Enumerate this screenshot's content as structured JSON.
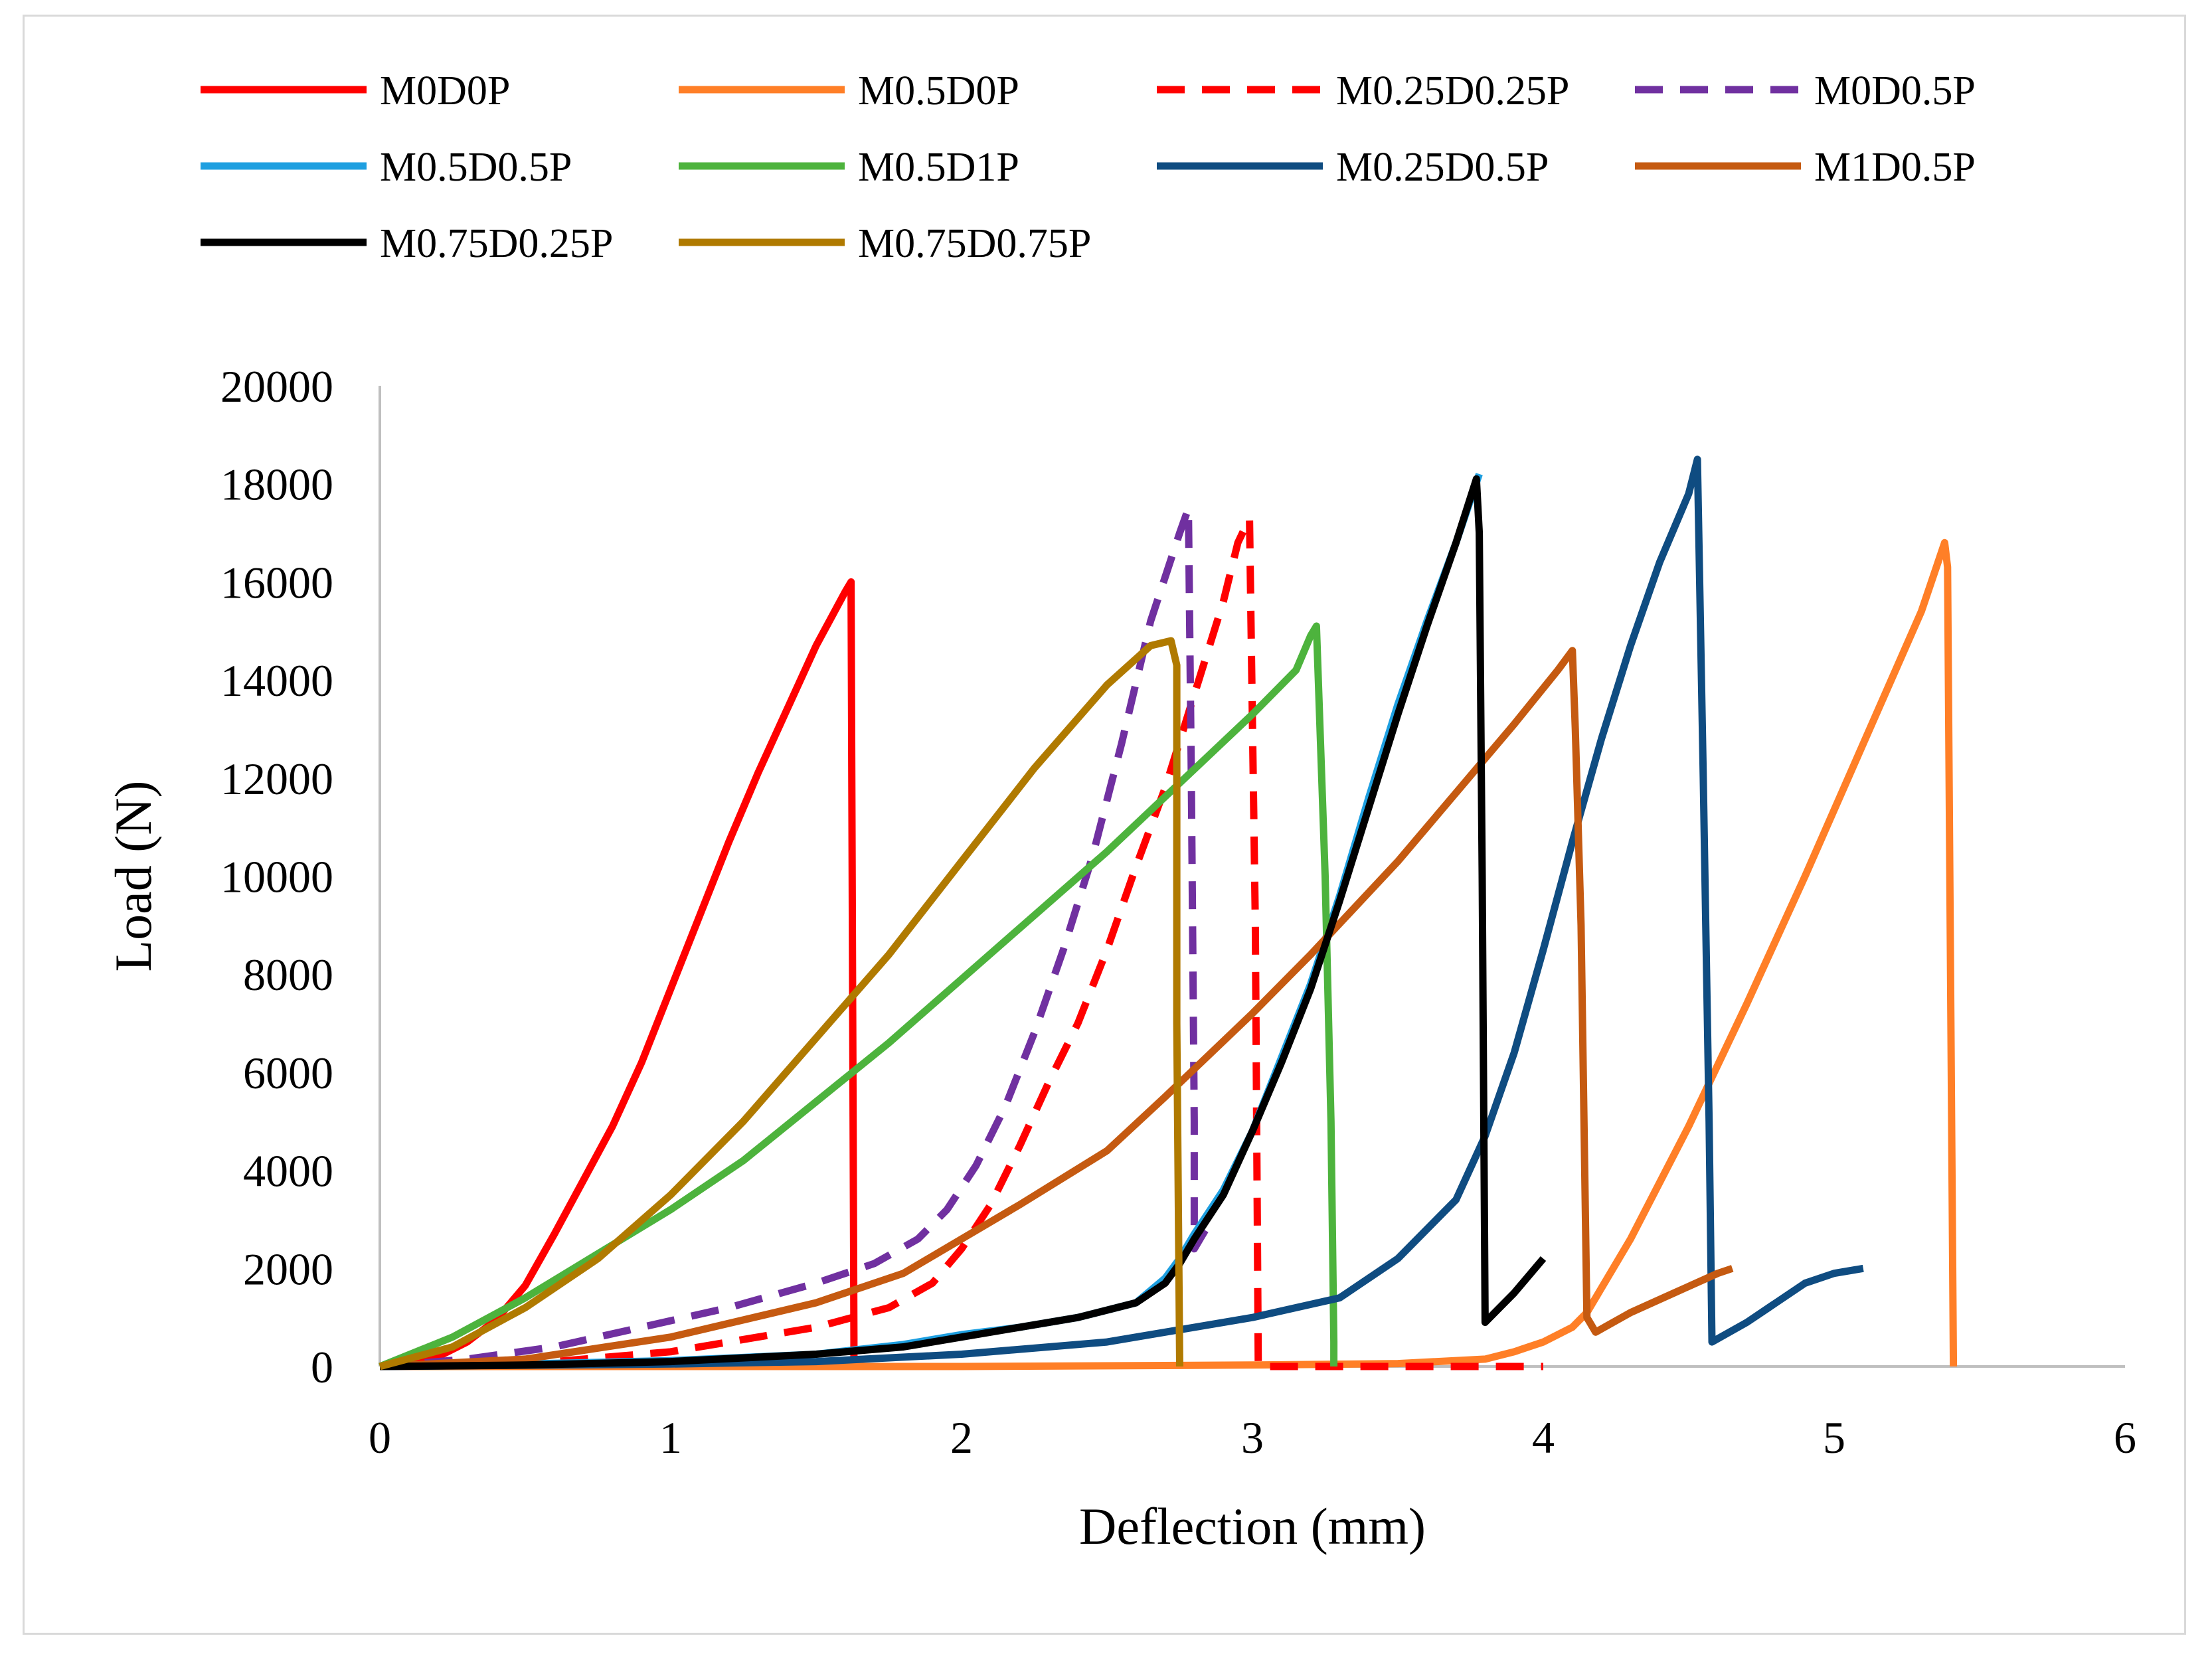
{
  "chart_data": {
    "type": "line",
    "title": "",
    "xlabel": "Deflection (mm)",
    "ylabel": "Load (N)",
    "xlim": [
      0,
      6
    ],
    "ylim": [
      0,
      20000
    ],
    "xticks": [
      0,
      1,
      2,
      3,
      4,
      5,
      6
    ],
    "yticks": [
      0,
      2000,
      4000,
      6000,
      8000,
      10000,
      12000,
      14000,
      16000,
      18000,
      20000
    ],
    "xtick_labels": [
      "0",
      "1",
      "2",
      "3",
      "4",
      "5",
      "6"
    ],
    "ytick_labels": [
      "0",
      "2000",
      "4000",
      "6000",
      "8000",
      "10000",
      "12000",
      "14000",
      "16000",
      "18000",
      "20000"
    ],
    "grid": false,
    "legend_position": "top",
    "series": [
      {
        "name": "M0D0P",
        "color": "#ff0000",
        "dash": "solid",
        "x": [
          0,
          0.1,
          0.2,
          0.3,
          0.4,
          0.5,
          0.6,
          0.7,
          0.8,
          0.9,
          1.0,
          1.1,
          1.2,
          1.3,
          1.4,
          1.5,
          1.6,
          1.62,
          1.63,
          1.63
        ],
        "y": [
          0,
          50,
          200,
          500,
          950,
          1650,
          2700,
          3800,
          4900,
          6200,
          7700,
          9200,
          10700,
          12100,
          13400,
          14700,
          15800,
          16000,
          600,
          0
        ]
      },
      {
        "name": "M0.5D0P",
        "color": "#ff7f27",
        "dash": "solid",
        "x": [
          0,
          1,
          2,
          3,
          3.5,
          3.8,
          3.9,
          4.0,
          4.1,
          4.15,
          4.3,
          4.5,
          4.7,
          4.9,
          5.1,
          5.3,
          5.38,
          5.39,
          5.41
        ],
        "y": [
          0,
          0,
          0,
          30,
          60,
          150,
          300,
          500,
          800,
          1100,
          2600,
          4900,
          7400,
          10000,
          12700,
          15400,
          16800,
          16300,
          0
        ]
      },
      {
        "name": "M0.25D0.25P",
        "color": "#ff0000",
        "dash": "dashed",
        "x": [
          0,
          0.5,
          1.0,
          1.5,
          1.75,
          1.9,
          2.0,
          2.1,
          2.2,
          2.3,
          2.4,
          2.5,
          2.6,
          2.7,
          2.8,
          2.9,
          2.95,
          2.99,
          3.01,
          3.02,
          3.5,
          4.0
        ],
        "y": [
          0,
          50,
          300,
          800,
          1200,
          1700,
          2400,
          3300,
          4500,
          5800,
          7000,
          8500,
          10200,
          11800,
          13700,
          15600,
          16800,
          17300,
          9000,
          0,
          0,
          0
        ]
      },
      {
        "name": "M0D0.5P",
        "color": "#7030a0",
        "dash": "dashed",
        "x": [
          0,
          0.3,
          0.6,
          0.9,
          1.2,
          1.5,
          1.7,
          1.85,
          1.95,
          2.05,
          2.15,
          2.25,
          2.35,
          2.45,
          2.55,
          2.65,
          2.75,
          2.78,
          2.79,
          2.8,
          2.8,
          2.85
        ],
        "y": [
          0,
          150,
          400,
          800,
          1200,
          1700,
          2100,
          2600,
          3200,
          4100,
          5300,
          6800,
          8500,
          10400,
          12700,
          15200,
          17000,
          17500,
          12000,
          5000,
          2400,
          2900
        ]
      },
      {
        "name": "M0.5D0.5P",
        "color": "#1e9fe0",
        "dash": "solid",
        "x": [
          0,
          0.5,
          1.0,
          1.5,
          1.8,
          2.0,
          2.2,
          2.4,
          2.6,
          2.7,
          2.75,
          2.8,
          2.9,
          3.0,
          3.1,
          3.2,
          3.3,
          3.4,
          3.5,
          3.6,
          3.7,
          3.78
        ],
        "y": [
          0,
          50,
          120,
          250,
          450,
          650,
          800,
          1000,
          1300,
          1800,
          2200,
          2700,
          3600,
          4800,
          6300,
          7800,
          9600,
          11600,
          13500,
          15200,
          16800,
          18200
        ]
      },
      {
        "name": "M0.5D1P",
        "color": "#4db33d",
        "dash": "solid",
        "x": [
          0,
          0.25,
          0.5,
          0.75,
          1.0,
          1.25,
          1.5,
          1.75,
          2.0,
          2.25,
          2.5,
          2.75,
          3.0,
          3.15,
          3.2,
          3.22,
          3.25,
          3.27,
          3.28,
          3.28
        ],
        "y": [
          0,
          600,
          1400,
          2300,
          3200,
          4200,
          5400,
          6600,
          7900,
          9200,
          10500,
          11900,
          13300,
          14200,
          14900,
          15100,
          10000,
          5000,
          500,
          0
        ]
      },
      {
        "name": "M0.25D0.5P",
        "color": "#0f4c81",
        "dash": "solid",
        "x": [
          0,
          1,
          1.5,
          2.0,
          2.5,
          3.0,
          3.3,
          3.5,
          3.7,
          3.8,
          3.9,
          4.0,
          4.1,
          4.2,
          4.3,
          4.4,
          4.5,
          4.53,
          4.55,
          4.57,
          4.58,
          4.7,
          4.8,
          4.9,
          5.0,
          5.1
        ],
        "y": [
          0,
          50,
          100,
          250,
          500,
          1000,
          1400,
          2200,
          3400,
          4700,
          6400,
          8500,
          10700,
          12800,
          14700,
          16400,
          17800,
          18500,
          12000,
          5000,
          500,
          900,
          1300,
          1700,
          1900,
          2000
        ]
      },
      {
        "name": "M1D0.5P",
        "color": "#c55a11",
        "dash": "solid",
        "x": [
          0,
          0.5,
          1.0,
          1.5,
          1.8,
          2.0,
          2.2,
          2.5,
          2.7,
          3.0,
          3.2,
          3.5,
          3.7,
          3.9,
          4.05,
          4.1,
          4.11,
          4.13,
          4.15,
          4.18,
          4.3,
          4.45,
          4.6,
          4.65
        ],
        "y": [
          0,
          150,
          600,
          1300,
          1900,
          2600,
          3300,
          4400,
          5500,
          7200,
          8400,
          10300,
          11700,
          13100,
          14200,
          14600,
          13000,
          9000,
          1000,
          700,
          1100,
          1500,
          1900,
          2000
        ]
      },
      {
        "name": "M0.75D0.25P",
        "color": "#000000",
        "dash": "solid",
        "x": [
          0,
          0.5,
          1.0,
          1.5,
          1.8,
          2.0,
          2.2,
          2.4,
          2.6,
          2.7,
          2.75,
          2.8,
          2.9,
          3.0,
          3.1,
          3.2,
          3.3,
          3.4,
          3.5,
          3.6,
          3.7,
          3.77,
          3.78,
          3.79,
          3.8,
          3.9,
          4.0
        ],
        "y": [
          0,
          30,
          100,
          250,
          400,
          600,
          800,
          1000,
          1300,
          1700,
          2100,
          2600,
          3500,
          4800,
          6200,
          7700,
          9500,
          11400,
          13300,
          15100,
          16800,
          18100,
          17000,
          10000,
          900,
          1500,
          2200
        ]
      },
      {
        "name": "M0.75D0.75P",
        "color": "#b07a00",
        "dash": "solid",
        "x": [
          0,
          0.25,
          0.5,
          0.75,
          1.0,
          1.25,
          1.5,
          1.75,
          2.0,
          2.25,
          2.5,
          2.65,
          2.72,
          2.74,
          2.74,
          2.75
        ],
        "y": [
          0,
          400,
          1200,
          2200,
          3500,
          5000,
          6700,
          8400,
          10300,
          12200,
          13900,
          14700,
          14800,
          14300,
          7000,
          0
        ]
      }
    ]
  }
}
